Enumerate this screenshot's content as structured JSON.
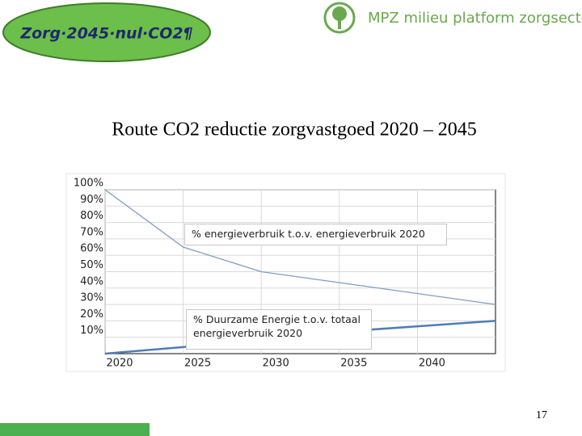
{
  "header": {
    "badge": "Zorg·2045·nul·CO2¶",
    "logo": "MPZ milieu platform zorgsector"
  },
  "chart_data": {
    "type": "line",
    "title": "Route CO2 reductie zorgvastgoed 2020 – 2045",
    "x": [
      2020,
      2025,
      2030,
      2045
    ],
    "series": [
      {
        "name": "% energieverbruik  t.o.v. energieverbruik  2020",
        "color": "#7f9cc6",
        "values": [
          100,
          65,
          50,
          30
        ]
      },
      {
        "name": "% Duurzame Energie t.o.v. totaal energieverbruik  2020",
        "color": "#4f7db5",
        "values": [
          0,
          4,
          10,
          20
        ]
      }
    ],
    "xlim": [
      2020,
      2045
    ],
    "xticks": [
      2020,
      2025,
      2030,
      2035,
      2040
    ],
    "ylim": [
      0,
      100
    ],
    "yticks": [
      {
        "value": 10,
        "label": "10%"
      },
      {
        "value": 20,
        "label": "20%"
      },
      {
        "value": 30,
        "label": "30%"
      },
      {
        "value": 40,
        "label": "40%"
      },
      {
        "value": 50,
        "label": "50%"
      },
      {
        "value": 60,
        "label": "60%"
      },
      {
        "value": 70,
        "label": "70%"
      },
      {
        "value": 80,
        "label": "80%"
      },
      {
        "value": 90,
        "label": "90%"
      },
      {
        "value": 100,
        "label": "100%"
      }
    ],
    "grid": true
  },
  "footer": {
    "page_number": "17"
  }
}
